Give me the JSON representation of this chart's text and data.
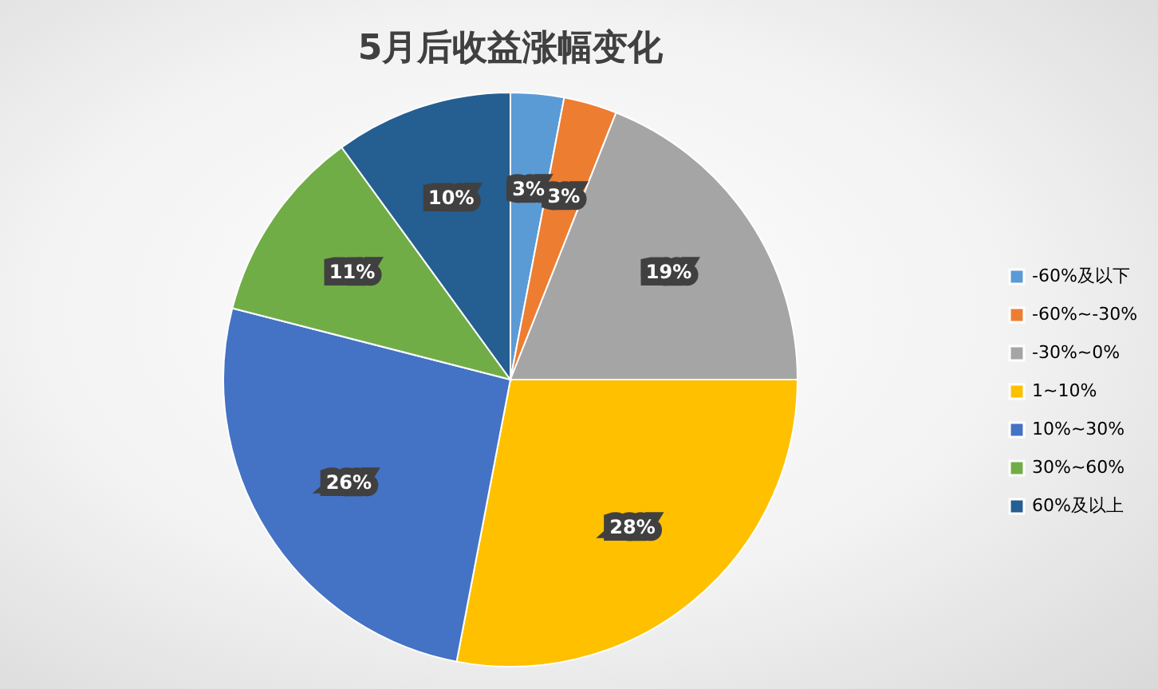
{
  "chart_data": {
    "type": "pie",
    "title": "5月后收益涨幅变化",
    "categories": [
      "-60%及以下",
      "-60%~-30%",
      "-30%~0%",
      "1~10%",
      "10%~30%",
      "30%~60%",
      "60%及以上"
    ],
    "values": [
      3,
      3,
      19,
      28,
      26,
      11,
      10
    ],
    "colors": [
      "#5b9bd5",
      "#ed7d31",
      "#a5a5a5",
      "#ffc000",
      "#4472c4",
      "#70ad47",
      "#255e91"
    ],
    "value_labels": [
      "3%",
      "3%",
      "19%",
      "28%",
      "26%",
      "11%",
      "10%"
    ],
    "legend": "right"
  }
}
